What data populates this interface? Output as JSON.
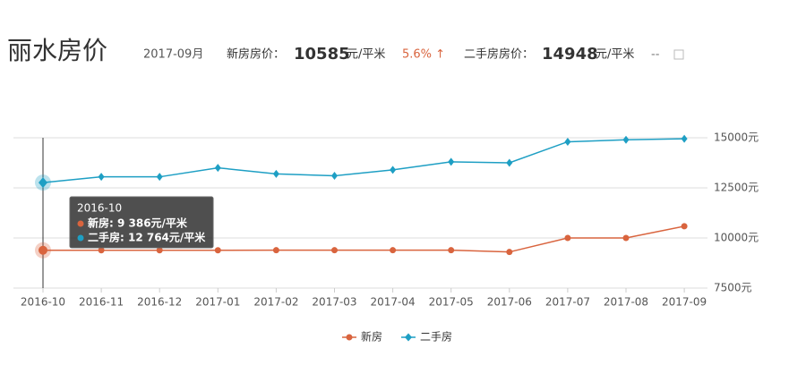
{
  "header": {
    "title": "丽水房价",
    "month": "2017-09月",
    "new_label": "新房房价：",
    "new_price": "10585",
    "new_unit": "元/平米",
    "new_change": "5.6% ↑",
    "second_label": "二手房房价：",
    "second_price": "14948",
    "second_unit": "元/平米",
    "second_change": "--"
  },
  "chart_data": {
    "type": "line",
    "categories": [
      "2016-10",
      "2016-11",
      "2016-12",
      "2017-01",
      "2017-02",
      "2017-03",
      "2017-04",
      "2017-05",
      "2017-06",
      "2017-07",
      "2017-08",
      "2017-09"
    ],
    "series": [
      {
        "name": "新房",
        "color": "#d9643e",
        "values": [
          9386,
          9386,
          9386,
          9386,
          9390,
          9390,
          9390,
          9390,
          9300,
          10000,
          10000,
          10585
        ]
      },
      {
        "name": "二手房",
        "color": "#1e9fc4",
        "values": [
          12764,
          13050,
          13050,
          13500,
          13200,
          13100,
          13400,
          13800,
          13750,
          14800,
          14900,
          14948
        ]
      }
    ],
    "ylim": [
      7500,
      15000
    ],
    "yticks": [
      {
        "value": 7500,
        "label": "7500元"
      },
      {
        "value": 10000,
        "label": "10000元"
      },
      {
        "value": 12500,
        "label": "12500元"
      },
      {
        "value": 15000,
        "label": "15000元"
      }
    ],
    "grid": true,
    "legend": "bottom",
    "tooltip": {
      "title": "2016-10",
      "lines": [
        "新房: 9 386元/平米",
        "二手房: 12 764元/平米"
      ]
    }
  }
}
